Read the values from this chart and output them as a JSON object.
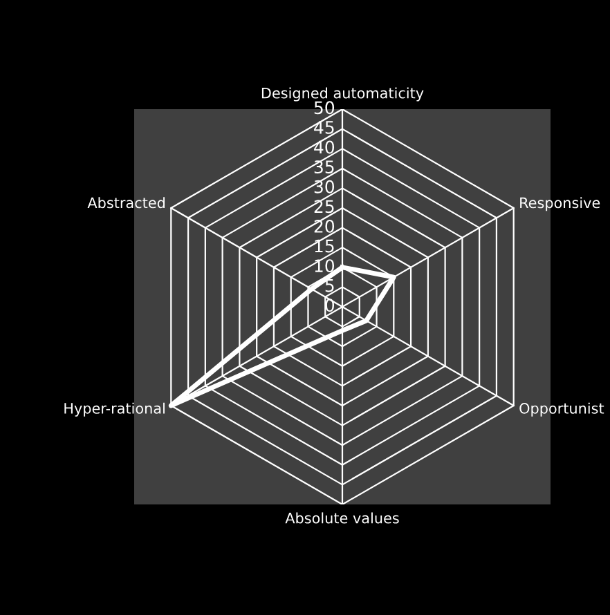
{
  "chart_data": {
    "type": "radar",
    "categories": [
      "Designed automaticity",
      "Responsive",
      "Opportunist",
      "Absolute values",
      "Hyper-rational",
      "Abstracted"
    ],
    "series": [
      {
        "color": "#ffffff",
        "values": [
          10,
          15,
          7,
          6,
          50,
          9
        ]
      }
    ],
    "ylim": [
      0,
      50
    ],
    "yticks": [
      0,
      5,
      10,
      15,
      20,
      25,
      30,
      35,
      40,
      45,
      50
    ],
    "grid": true
  }
}
